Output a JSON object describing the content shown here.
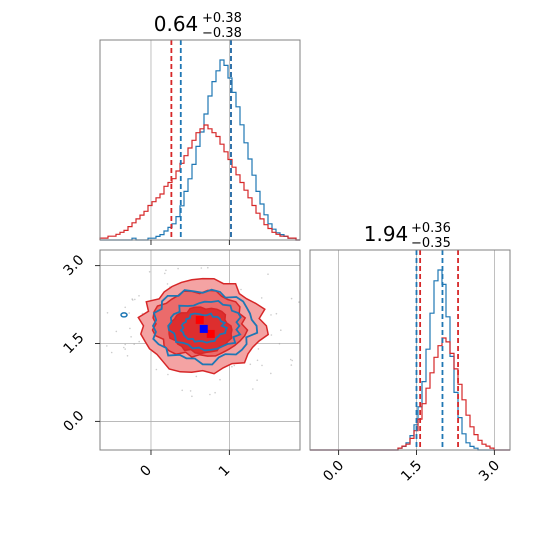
{
  "chart_data": {
    "type": "corner",
    "colors": {
      "blue": "#1f77b4",
      "red": "#d62728",
      "grid": "#b0b0b0",
      "frame": "#808080"
    },
    "params": [
      {
        "range": [
          -0.65,
          1.9
        ],
        "ticks": [
          0,
          1
        ],
        "tick_labels": [
          "0",
          "1"
        ],
        "title": {
          "value": "0.64",
          "upper": "+0.38",
          "lower": "−0.38"
        },
        "blue_quantiles": [
          0.38,
          1.02
        ],
        "red_quantiles": [
          0.26,
          1.02
        ]
      },
      {
        "range": [
          -0.55,
          3.3
        ],
        "ticks": [
          0.0,
          1.5,
          3.0
        ],
        "tick_labels": [
          "0.0",
          "1.5",
          "3.0"
        ],
        "title": {
          "value": "1.94",
          "upper": "+0.36",
          "lower": "−0.35"
        },
        "blue_quantiles": [
          1.5,
          2.0
        ],
        "red_quantiles": [
          1.57,
          2.3
        ]
      }
    ],
    "y_tick_labels": [
      "0.0",
      "1.5",
      "3.0"
    ],
    "hist1_bins": [
      -0.65,
      1.9
    ],
    "hist1_blue": [
      0,
      0,
      0,
      0,
      0,
      0,
      0,
      0,
      1,
      0,
      0,
      0,
      1,
      1,
      2,
      3,
      5,
      7,
      9,
      13,
      19,
      27,
      34,
      42,
      52,
      60,
      70,
      80,
      88,
      94,
      100,
      97,
      90,
      82,
      74,
      64,
      54,
      45,
      36,
      27,
      20,
      14,
      9,
      6,
      4,
      3,
      2,
      1,
      1,
      0
    ],
    "hist1_red": [
      1,
      1,
      2,
      2,
      3,
      4,
      5,
      7,
      9,
      11,
      13,
      15,
      18,
      20,
      22,
      24,
      28,
      30,
      32,
      36,
      40,
      44,
      48,
      52,
      56,
      58,
      60,
      58,
      56,
      54,
      50,
      46,
      42,
      38,
      34,
      30,
      26,
      22,
      18,
      14,
      11,
      8,
      6,
      4,
      3,
      2,
      2,
      1,
      1,
      0
    ],
    "hist2_bins": [
      -0.55,
      3.3
    ],
    "hist2_blue": [
      0,
      0,
      0,
      0,
      0,
      0,
      0,
      0,
      0,
      0,
      0,
      0,
      0,
      0,
      0,
      0,
      0,
      0,
      0,
      0,
      0,
      0,
      1,
      2,
      4,
      8,
      14,
      24,
      38,
      56,
      76,
      94,
      100,
      92,
      74,
      52,
      32,
      18,
      9,
      4,
      2,
      1,
      0,
      0,
      0,
      0,
      0,
      0,
      0,
      0
    ],
    "hist2_red": [
      0,
      0,
      0,
      0,
      0,
      0,
      0,
      0,
      0,
      0,
      0,
      0,
      0,
      0,
      0,
      0,
      0,
      0,
      0,
      0,
      0,
      0,
      1,
      2,
      3,
      6,
      10,
      16,
      24,
      32,
      40,
      48,
      54,
      58,
      56,
      50,
      42,
      34,
      26,
      18,
      12,
      8,
      5,
      3,
      2,
      1,
      0,
      0,
      0,
      0
    ],
    "scatter_center": {
      "x": 0.66,
      "y": 1.8
    }
  }
}
